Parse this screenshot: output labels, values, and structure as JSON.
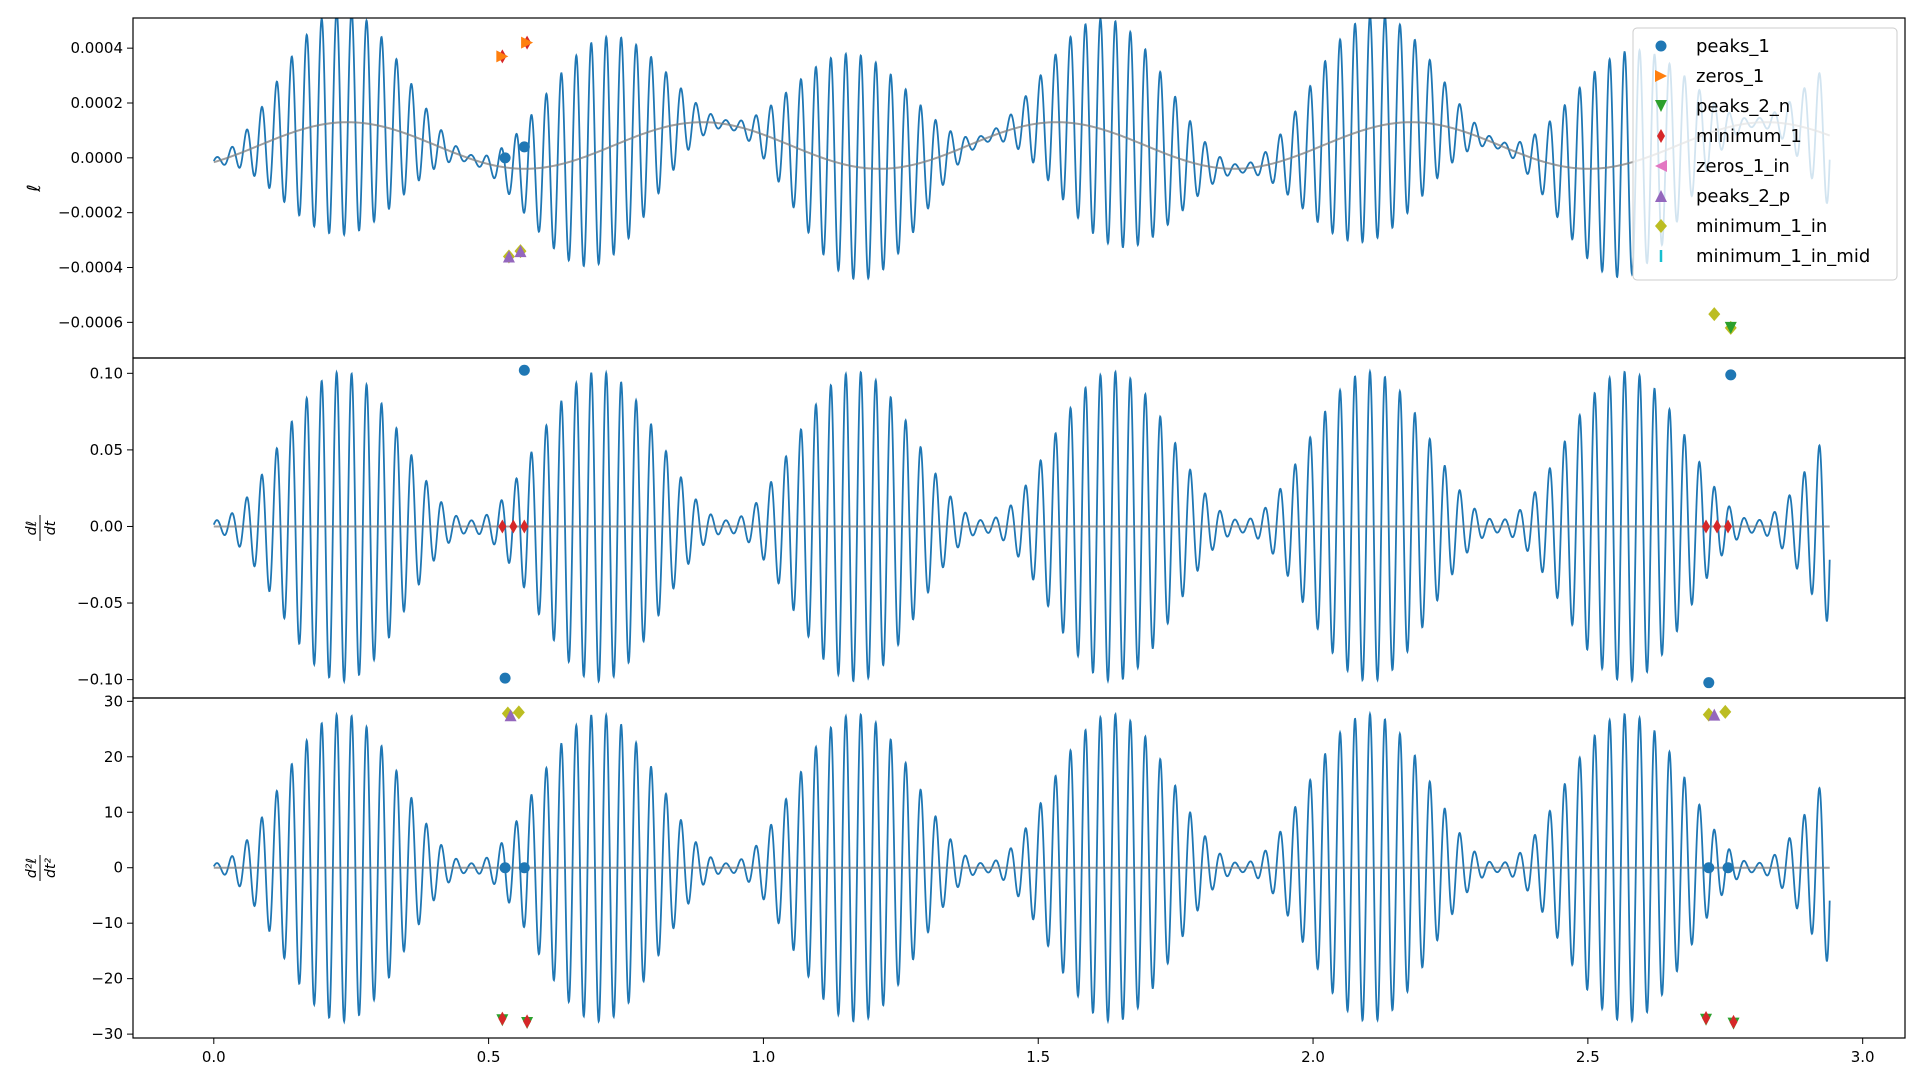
{
  "chart_data": [
    {
      "type": "line",
      "panel": "top",
      "ylabel_parts": [
        "ℓ"
      ],
      "xlim": [
        -0.147,
        3.077
      ],
      "ylim": [
        -0.00073,
        0.00051
      ],
      "yticks": [
        0.0004,
        0.0002,
        0.0,
        -0.0002,
        -0.0004,
        -0.0006
      ],
      "ytick_labels": [
        "0.0004",
        "0.0002",
        "0.0000",
        "−0.0002",
        "−0.0004",
        "−0.0006"
      ],
      "grid": false,
      "legend": "top-right",
      "signal": {
        "color": "#1f77b4",
        "x_range": [
          0,
          2.94
        ],
        "carrier_periods_per_unit": 36.7,
        "amplitude_min": 1.5e-05,
        "amplitude_max": 0.00041,
        "envelope_periods_per_unit": 2.14,
        "drift_amplitude": 8.5e-05,
        "drift_offset": 4.5e-05
      },
      "trend": {
        "color": "#7f7f7f",
        "note": "slow grey curve"
      },
      "markers": [
        {
          "series": "peaks_1",
          "x": [
            0.53,
            0.565
          ],
          "y": [
            0.0,
            4e-05
          ]
        },
        {
          "series": "minimum_1",
          "x": [
            0.525,
            0.57
          ],
          "y": [
            0.00037,
            0.00042
          ]
        },
        {
          "series": "zeros_1",
          "x": [
            0.525,
            0.57
          ],
          "y": [
            0.00037,
            0.00042
          ]
        },
        {
          "series": "minimum_1_in",
          "x": [
            0.537,
            0.558
          ],
          "y": [
            -0.00036,
            -0.00034
          ]
        },
        {
          "series": "peaks_2_p",
          "x": [
            0.537,
            0.558
          ],
          "y": [
            -0.00036,
            -0.00034
          ]
        },
        {
          "series": "minimum_1_in",
          "x": [
            2.73,
            2.76
          ],
          "y": [
            -0.00057,
            -0.00062
          ]
        },
        {
          "series": "peaks_2_n",
          "x": [
            2.76
          ],
          "y": [
            -0.00062
          ]
        }
      ]
    },
    {
      "type": "line",
      "panel": "middle",
      "ylabel_parts": [
        "dℓ",
        "dt"
      ],
      "xlim": [
        -0.147,
        3.077
      ],
      "ylim": [
        -0.112,
        0.11
      ],
      "yticks": [
        0.1,
        0.05,
        0.0,
        -0.05,
        -0.1
      ],
      "ytick_labels": [
        "0.10",
        "0.05",
        "0.00",
        "−0.05",
        "−0.10"
      ],
      "grid": false,
      "signal": {
        "color": "#1f77b4",
        "x_range": [
          0,
          2.94
        ],
        "carrier_periods_per_unit": 36.7,
        "amplitude_min": 0.004,
        "amplitude_max": 0.101,
        "envelope_periods_per_unit": 2.14
      },
      "trend": {
        "color": "#7f7f7f",
        "value": 0.0
      },
      "markers": [
        {
          "series": "peaks_1",
          "x": [
            0.53,
            0.565,
            2.72,
            2.76
          ],
          "y": [
            -0.099,
            0.102,
            -0.102,
            0.099
          ]
        },
        {
          "series": "minimum_1",
          "x": [
            0.525,
            0.545,
            0.565,
            2.715,
            2.735,
            2.755
          ],
          "y": [
            0.0,
            0.0,
            0.0,
            0.0,
            0.0,
            0.0
          ]
        }
      ]
    },
    {
      "type": "line",
      "panel": "bottom",
      "ylabel_parts": [
        "d²ℓ",
        "dt²"
      ],
      "xlim": [
        -0.147,
        3.077
      ],
      "ylim": [
        -30.7,
        30.6
      ],
      "yticks": [
        30,
        20,
        10,
        0,
        -10,
        -20,
        -30
      ],
      "ytick_labels": [
        "30",
        "20",
        "10",
        "0",
        "−10",
        "−20",
        "−30"
      ],
      "xticks": [
        0.0,
        0.5,
        1.0,
        1.5,
        2.0,
        2.5,
        3.0
      ],
      "xtick_labels": [
        "0.0",
        "0.5",
        "1.0",
        "1.5",
        "2.0",
        "2.5",
        "3.0"
      ],
      "grid": false,
      "signal": {
        "color": "#1f77b4",
        "x_range": [
          0,
          2.94
        ],
        "carrier_periods_per_unit": 36.7,
        "amplitude_min": 0.8,
        "amplitude_max": 27.7,
        "envelope_periods_per_unit": 2.14
      },
      "trend": {
        "color": "#7f7f7f",
        "value": 0.0
      },
      "markers": [
        {
          "series": "peaks_1",
          "x": [
            0.53,
            0.565,
            2.72,
            2.755
          ],
          "y": [
            0.0,
            0.0,
            0.0,
            0.0
          ]
        },
        {
          "series": "minimum_1_in",
          "x": [
            0.535,
            0.555,
            2.72,
            2.75
          ],
          "y": [
            27.8,
            28.0,
            27.6,
            28.1
          ]
        },
        {
          "series": "peaks_2_p",
          "x": [
            0.54,
            2.73
          ],
          "y": [
            27.5,
            27.6
          ]
        },
        {
          "series": "peaks_2_n",
          "x": [
            0.525,
            0.57,
            2.715,
            2.765
          ],
          "y": [
            -27.5,
            -28.0,
            -27.4,
            -28.1
          ]
        },
        {
          "series": "minimum_1",
          "x": [
            0.525,
            0.57,
            2.715,
            2.765
          ],
          "y": [
            -27.2,
            -27.7,
            -27.1,
            -27.8
          ]
        }
      ]
    }
  ],
  "legend": {
    "items": [
      {
        "label": "peaks_1",
        "color": "#1f77b4",
        "marker": "circle"
      },
      {
        "label": "zeros_1",
        "color": "#ff7f0e",
        "marker": "triangle-right"
      },
      {
        "label": "peaks_2_n",
        "color": "#2ca02c",
        "marker": "triangle-down"
      },
      {
        "label": "minimum_1",
        "color": "#d62728",
        "marker": "diamond-thin"
      },
      {
        "label": "zeros_1_in",
        "color": "#e377c2",
        "marker": "triangle-left"
      },
      {
        "label": "peaks_2_p",
        "color": "#9467bd",
        "marker": "triangle-up"
      },
      {
        "label": "minimum_1_in",
        "color": "#bcbd22",
        "marker": "diamond"
      },
      {
        "label": "minimum_1_in_mid",
        "color": "#17becf",
        "marker": "vline"
      }
    ]
  }
}
